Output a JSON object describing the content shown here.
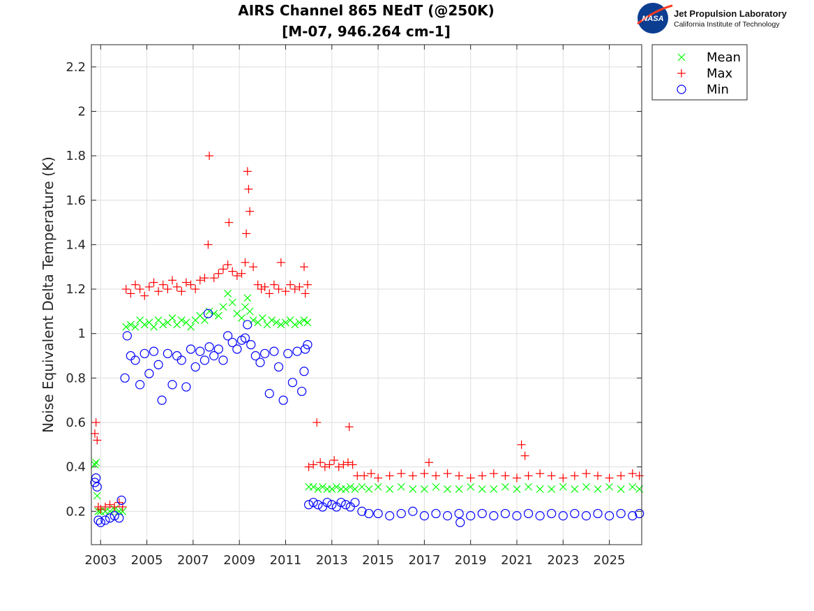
{
  "logo": {
    "badge_text": "NASA",
    "line1": "Jet Propulsion Laboratory",
    "line2": "California Institute of Technology"
  },
  "chart_data": {
    "type": "scatter",
    "title": [
      "AIRS Channel 865 NEdT (@250K)",
      "[M-07, 946.264 cm-1]"
    ],
    "xlabel": "",
    "ylabel": "Noise Equivalent Delta Temperature (K)",
    "xlim": [
      2002.6,
      2026.4
    ],
    "ylim": [
      0.05,
      2.3
    ],
    "xticks": [
      2003,
      2005,
      2007,
      2009,
      2011,
      2013,
      2015,
      2017,
      2019,
      2021,
      2023,
      2025
    ],
    "xtick_labels": [
      "2003",
      "2005",
      "2007",
      "2009",
      "2011",
      "2013",
      "2015",
      "2017",
      "2019",
      "2021",
      "2023",
      "2025"
    ],
    "yticks": [
      0.2,
      0.4,
      0.6,
      0.8,
      1,
      1.2,
      1.4,
      1.6,
      1.8,
      2,
      2.2
    ],
    "ytick_labels": [
      "0.2",
      "0.4",
      "0.6",
      "0.8",
      "1",
      "1.2",
      "1.4",
      "1.6",
      "1.8",
      "2",
      "2.2"
    ],
    "grid": true,
    "legend": {
      "position": "outside-top-right",
      "entries": [
        "Mean",
        "Max",
        "Min"
      ]
    },
    "series": [
      {
        "name": "Mean",
        "marker": "x",
        "color": "#00ff00",
        "x": [
          2002.75,
          2002.8,
          2002.85,
          2002.9,
          2003.0,
          2003.2,
          2003.4,
          2003.6,
          2003.8,
          2003.95,
          2004.1,
          2004.3,
          2004.5,
          2004.7,
          2004.9,
          2005.1,
          2005.3,
          2005.5,
          2005.7,
          2005.9,
          2006.1,
          2006.3,
          2006.5,
          2006.7,
          2006.9,
          2007.1,
          2007.3,
          2007.5,
          2007.7,
          2007.9,
          2008.1,
          2008.3,
          2008.5,
          2008.7,
          2008.9,
          2009.1,
          2009.25,
          2009.35,
          2009.45,
          2009.6,
          2009.8,
          2010.0,
          2010.2,
          2010.4,
          2010.6,
          2010.8,
          2011.0,
          2011.2,
          2011.4,
          2011.6,
          2011.8,
          2011.95,
          2012.0,
          2012.2,
          2012.4,
          2012.6,
          2012.8,
          2013.0,
          2013.2,
          2013.4,
          2013.6,
          2013.8,
          2014.0,
          2014.3,
          2014.6,
          2015.0,
          2015.5,
          2016.0,
          2016.5,
          2017.0,
          2017.5,
          2018.0,
          2018.5,
          2019.0,
          2019.5,
          2020.0,
          2020.5,
          2021.0,
          2021.5,
          2022.0,
          2022.5,
          2023.0,
          2023.5,
          2024.0,
          2024.5,
          2025.0,
          2025.5,
          2026.0,
          2026.3
        ],
        "y": [
          0.41,
          0.42,
          0.27,
          0.2,
          0.2,
          0.2,
          0.2,
          0.21,
          0.2,
          0.2,
          1.03,
          1.04,
          1.03,
          1.06,
          1.04,
          1.05,
          1.03,
          1.06,
          1.04,
          1.05,
          1.07,
          1.04,
          1.06,
          1.05,
          1.03,
          1.06,
          1.08,
          1.06,
          1.1,
          1.09,
          1.08,
          1.12,
          1.18,
          1.14,
          1.09,
          1.07,
          1.12,
          1.16,
          1.1,
          1.06,
          1.05,
          1.07,
          1.04,
          1.06,
          1.05,
          1.04,
          1.05,
          1.06,
          1.04,
          1.05,
          1.06,
          1.05,
          0.31,
          0.31,
          0.3,
          0.31,
          0.3,
          0.3,
          0.31,
          0.3,
          0.3,
          0.31,
          0.3,
          0.31,
          0.3,
          0.31,
          0.3,
          0.31,
          0.3,
          0.3,
          0.31,
          0.3,
          0.3,
          0.31,
          0.3,
          0.3,
          0.31,
          0.3,
          0.31,
          0.3,
          0.3,
          0.31,
          0.3,
          0.31,
          0.3,
          0.31,
          0.3,
          0.31,
          0.3
        ]
      },
      {
        "name": "Max",
        "marker": "+",
        "color": "#ff0000",
        "x": [
          2002.75,
          2002.8,
          2002.85,
          2002.9,
          2003.0,
          2003.2,
          2003.4,
          2003.6,
          2003.8,
          2003.95,
          2004.1,
          2004.3,
          2004.5,
          2004.7,
          2004.9,
          2005.1,
          2005.3,
          2005.5,
          2005.7,
          2005.9,
          2006.1,
          2006.3,
          2006.5,
          2006.7,
          2006.9,
          2007.1,
          2007.3,
          2007.5,
          2007.65,
          2007.7,
          2007.9,
          2008.1,
          2008.3,
          2008.5,
          2008.55,
          2008.7,
          2008.9,
          2009.1,
          2009.25,
          2009.3,
          2009.35,
          2009.4,
          2009.45,
          2009.6,
          2009.8,
          2009.95,
          2010.1,
          2010.3,
          2010.5,
          2010.7,
          2010.8,
          2011.0,
          2011.2,
          2011.4,
          2011.6,
          2011.8,
          2011.95,
          2011.85,
          2012.0,
          2012.2,
          2012.35,
          2012.5,
          2012.7,
          2012.9,
          2013.1,
          2013.3,
          2013.5,
          2013.7,
          2013.75,
          2013.9,
          2014.1,
          2014.4,
          2014.7,
          2015.0,
          2015.5,
          2016.0,
          2016.5,
          2017.0,
          2017.2,
          2017.5,
          2018.0,
          2018.5,
          2019.0,
          2019.5,
          2020.0,
          2020.5,
          2021.0,
          2021.2,
          2021.35,
          2021.5,
          2022.0,
          2022.5,
          2023.0,
          2023.5,
          2024.0,
          2024.5,
          2025.0,
          2025.5,
          2026.0,
          2026.3
        ],
        "y": [
          0.55,
          0.6,
          0.52,
          0.22,
          0.21,
          0.22,
          0.23,
          0.22,
          0.24,
          0.22,
          1.2,
          1.18,
          1.22,
          1.2,
          1.17,
          1.21,
          1.23,
          1.19,
          1.22,
          1.2,
          1.24,
          1.21,
          1.19,
          1.23,
          1.22,
          1.2,
          1.24,
          1.25,
          1.4,
          1.8,
          1.25,
          1.27,
          1.29,
          1.31,
          1.5,
          1.28,
          1.26,
          1.27,
          1.32,
          1.45,
          1.73,
          1.65,
          1.55,
          1.3,
          1.22,
          1.2,
          1.21,
          1.18,
          1.22,
          1.2,
          1.32,
          1.19,
          1.22,
          1.2,
          1.21,
          1.3,
          1.22,
          1.18,
          0.4,
          0.41,
          0.6,
          0.42,
          0.4,
          0.41,
          0.43,
          0.4,
          0.41,
          0.42,
          0.58,
          0.41,
          0.36,
          0.36,
          0.37,
          0.35,
          0.36,
          0.37,
          0.36,
          0.37,
          0.42,
          0.36,
          0.37,
          0.36,
          0.35,
          0.36,
          0.37,
          0.36,
          0.35,
          0.5,
          0.45,
          0.36,
          0.37,
          0.36,
          0.35,
          0.36,
          0.37,
          0.36,
          0.35,
          0.36,
          0.37,
          0.36
        ]
      },
      {
        "name": "Min",
        "marker": "o",
        "color": "#0000ff",
        "x": [
          2002.75,
          2002.8,
          2002.85,
          2002.9,
          2003.0,
          2003.2,
          2003.4,
          2003.6,
          2003.8,
          2003.9,
          2004.05,
          2004.15,
          2004.3,
          2004.5,
          2004.7,
          2004.9,
          2005.1,
          2005.3,
          2005.5,
          2005.65,
          2005.9,
          2006.1,
          2006.3,
          2006.5,
          2006.7,
          2006.9,
          2007.1,
          2007.3,
          2007.5,
          2007.65,
          2007.7,
          2007.9,
          2008.1,
          2008.3,
          2008.5,
          2008.7,
          2008.9,
          2009.1,
          2009.25,
          2009.35,
          2009.5,
          2009.7,
          2009.9,
          2010.1,
          2010.3,
          2010.5,
          2010.7,
          2010.9,
          2011.1,
          2011.3,
          2011.5,
          2011.7,
          2011.85,
          2011.95,
          2011.8,
          2012.0,
          2012.2,
          2012.4,
          2012.6,
          2012.8,
          2013.0,
          2013.2,
          2013.4,
          2013.6,
          2013.8,
          2014.0,
          2014.3,
          2014.6,
          2015.0,
          2015.5,
          2016.0,
          2016.5,
          2017.0,
          2017.5,
          2018.0,
          2018.5,
          2018.55,
          2019.0,
          2019.5,
          2020.0,
          2020.5,
          2021.0,
          2021.5,
          2022.0,
          2022.5,
          2023.0,
          2023.5,
          2024.0,
          2024.5,
          2025.0,
          2025.5,
          2026.0,
          2026.3
        ],
        "y": [
          0.33,
          0.35,
          0.31,
          0.16,
          0.15,
          0.16,
          0.17,
          0.18,
          0.17,
          0.25,
          0.8,
          0.99,
          0.9,
          0.88,
          0.77,
          0.91,
          0.82,
          0.92,
          0.86,
          0.7,
          0.91,
          0.77,
          0.9,
          0.88,
          0.76,
          0.93,
          0.85,
          0.92,
          0.88,
          1.09,
          0.94,
          0.9,
          0.93,
          0.88,
          0.99,
          0.96,
          0.93,
          0.97,
          0.98,
          1.04,
          0.95,
          0.9,
          0.87,
          0.91,
          0.73,
          0.92,
          0.85,
          0.7,
          0.91,
          0.78,
          0.92,
          0.74,
          0.93,
          0.95,
          0.83,
          0.23,
          0.24,
          0.23,
          0.22,
          0.24,
          0.23,
          0.22,
          0.24,
          0.23,
          0.22,
          0.24,
          0.2,
          0.19,
          0.19,
          0.18,
          0.19,
          0.2,
          0.18,
          0.19,
          0.18,
          0.19,
          0.15,
          0.18,
          0.19,
          0.18,
          0.19,
          0.18,
          0.19,
          0.18,
          0.19,
          0.18,
          0.19,
          0.18,
          0.19,
          0.18,
          0.19,
          0.18,
          0.19
        ]
      }
    ]
  }
}
